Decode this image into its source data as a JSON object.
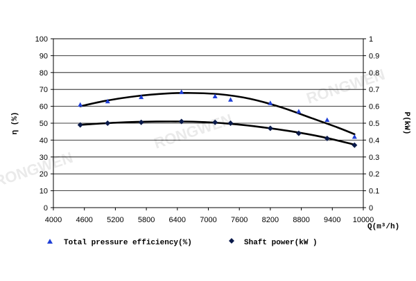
{
  "chart_data": {
    "type": "scatter",
    "x_axis": {
      "label": "Q(m³/h)",
      "range": [
        4000,
        10000
      ],
      "ticks": [
        4000,
        4600,
        5200,
        5800,
        6400,
        7000,
        7600,
        8200,
        8800,
        9400,
        10000
      ]
    },
    "y_left": {
      "label": "η (%)",
      "range": [
        0,
        100
      ],
      "ticks": [
        0,
        10,
        20,
        30,
        40,
        50,
        60,
        70,
        80,
        90,
        100
      ]
    },
    "y_right": {
      "label": "P(kW)",
      "range": [
        0,
        1
      ],
      "ticks": [
        "0",
        "0.1",
        "0.2",
        "0.3",
        "0.4",
        "0.5",
        "0.6",
        "0.7",
        "0.8",
        "0.9",
        "1"
      ]
    },
    "grid": true,
    "legend_position": "bottom",
    "series": [
      {
        "name": "Total pressure efficiency(%)",
        "axis": "left",
        "marker": "triangle",
        "color": "#1f3fd6",
        "x": [
          4520,
          5050,
          5700,
          6480,
          7130,
          7430,
          8200,
          8750,
          9300,
          9830
        ],
        "y": [
          61,
          63,
          65.5,
          68.5,
          66,
          64,
          62,
          57,
          52,
          42
        ],
        "fit": [
          [
            4520,
            60
          ],
          [
            5000,
            63.2
          ],
          [
            5600,
            66
          ],
          [
            6200,
            67.6
          ],
          [
            6600,
            67.9
          ],
          [
            7200,
            67.2
          ],
          [
            7800,
            64.5
          ],
          [
            8400,
            59.5
          ],
          [
            9000,
            53
          ],
          [
            9500,
            47.5
          ],
          [
            9830,
            43.5
          ]
        ]
      },
      {
        "name": "Shaft power(kW )",
        "axis": "right",
        "marker": "diamond",
        "color": "#0a1a4a",
        "x": [
          4520,
          5050,
          5700,
          6480,
          7130,
          7430,
          8200,
          8750,
          9300,
          9830
        ],
        "y": [
          0.49,
          0.5,
          0.505,
          0.51,
          0.505,
          0.5,
          0.47,
          0.44,
          0.41,
          0.37
        ],
        "fit": [
          [
            4520,
            0.49
          ],
          [
            5200,
            0.503
          ],
          [
            6000,
            0.51
          ],
          [
            6800,
            0.508
          ],
          [
            7400,
            0.497
          ],
          [
            8000,
            0.478
          ],
          [
            8600,
            0.452
          ],
          [
            9200,
            0.419
          ],
          [
            9830,
            0.373
          ]
        ]
      }
    ]
  },
  "watermark": "RONGWEN",
  "colors": {
    "curve": "#000000",
    "grid": "#000000",
    "triangle": "#1f3fd6",
    "diamond": "#0a1a4a"
  }
}
